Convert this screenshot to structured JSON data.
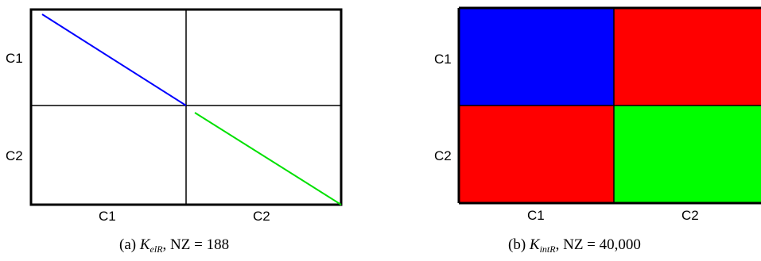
{
  "panels": [
    {
      "id": "a",
      "row_labels": [
        "C1",
        "C2"
      ],
      "col_labels": [
        "C1",
        "C2"
      ],
      "caption": {
        "prefix": "(a) ",
        "symbol": "K",
        "subscript": "elR",
        "suffix": ", NZ = 188"
      },
      "blocks": [
        {
          "row": 0,
          "col": 0,
          "pattern": "diagonal",
          "color": "#0000ff"
        },
        {
          "row": 1,
          "col": 1,
          "pattern": "diagonal",
          "color": "#00e000"
        }
      ]
    },
    {
      "id": "b",
      "row_labels": [
        "C1",
        "C2"
      ],
      "col_labels": [
        "C1",
        "C2"
      ],
      "caption": {
        "prefix": "(b) ",
        "symbol": "K",
        "subscript": "intR",
        "suffix": ", NZ = 40,000"
      },
      "blocks": [
        {
          "row": 0,
          "col": 0,
          "pattern": "full",
          "color": "#0000ff"
        },
        {
          "row": 0,
          "col": 1,
          "pattern": "full",
          "color": "#ff0000"
        },
        {
          "row": 1,
          "col": 0,
          "pattern": "full",
          "color": "#ff0000"
        },
        {
          "row": 1,
          "col": 1,
          "pattern": "full",
          "color": "#00ff00"
        }
      ]
    }
  ]
}
